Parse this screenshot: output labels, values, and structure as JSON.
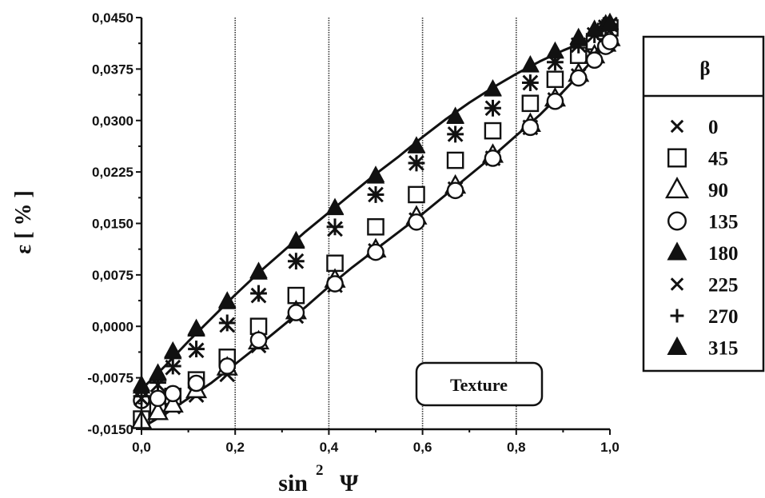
{
  "chart_data": {
    "type": "scatter",
    "title": "",
    "xlabel": "sin",
    "xlabel_sup": "2",
    "xlabel_symbol": "Ψ",
    "ylabel": "ε [ % ]",
    "xlim": [
      0.0,
      1.0
    ],
    "ylim": [
      -0.015,
      0.045
    ],
    "x_ticks": [
      0.0,
      0.2,
      0.4,
      0.6,
      0.8,
      1.0
    ],
    "x_tick_labels": [
      "0,0",
      "0,2",
      "0,4",
      "0,6",
      "0,8",
      "1,0"
    ],
    "y_ticks": [
      -0.015,
      -0.0075,
      0.0,
      0.0075,
      0.015,
      0.0225,
      0.03,
      0.0375,
      0.045
    ],
    "y_tick_labels": [
      "-0,0150",
      "-0,0075",
      "0,0000",
      "0,0075",
      "0,0150",
      "0,0225",
      "0,0300",
      "0,0375",
      "0,0450"
    ],
    "vertical_gridlines_at": [
      0.2,
      0.4,
      0.6,
      0.8
    ],
    "legend_title": "β",
    "legend_position": "right",
    "annotation": "Texture",
    "series": [
      {
        "name": "0",
        "marker": "x",
        "x": [
          0.0,
          0.035,
          0.067,
          0.117,
          0.183,
          0.25,
          0.33,
          0.413,
          0.5,
          0.587,
          0.67,
          0.75,
          0.83,
          0.883,
          0.933,
          0.967,
          0.991,
          1.0
        ],
        "y": [
          -0.0138,
          -0.0125,
          -0.0117,
          -0.01,
          -0.007,
          -0.0028,
          0.0015,
          0.006,
          0.011,
          0.0155,
          0.02,
          0.0245,
          0.029,
          0.033,
          0.0365,
          0.0392,
          0.041,
          0.0418
        ]
      },
      {
        "name": "45",
        "marker": "square",
        "x": [
          0.0,
          0.035,
          0.067,
          0.117,
          0.183,
          0.25,
          0.33,
          0.413,
          0.5,
          0.587,
          0.67,
          0.75,
          0.83,
          0.883,
          0.933,
          0.967,
          0.991,
          1.0
        ],
        "y": [
          -0.0135,
          -0.0118,
          -0.0102,
          -0.0078,
          -0.0045,
          0.0,
          0.0045,
          0.0092,
          0.0145,
          0.0192,
          0.0242,
          0.0285,
          0.0325,
          0.036,
          0.0395,
          0.0415,
          0.043,
          0.0435
        ]
      },
      {
        "name": "90",
        "marker": "triangle-open",
        "x": [
          0.0,
          0.035,
          0.067,
          0.117,
          0.183,
          0.25,
          0.33,
          0.413,
          0.5,
          0.587,
          0.67,
          0.75,
          0.83,
          0.883,
          0.933,
          0.967,
          0.991,
          1.0
        ],
        "y": [
          -0.0138,
          -0.0125,
          -0.0114,
          -0.0093,
          -0.006,
          -0.0022,
          0.0022,
          0.0068,
          0.0112,
          0.016,
          0.0205,
          0.025,
          0.0295,
          0.0332,
          0.0368,
          0.0395,
          0.0412,
          0.042
        ]
      },
      {
        "name": "135",
        "marker": "circle",
        "x": [
          0.0,
          0.035,
          0.067,
          0.117,
          0.183,
          0.25,
          0.33,
          0.413,
          0.5,
          0.587,
          0.67,
          0.75,
          0.83,
          0.883,
          0.933,
          0.967,
          0.991,
          1.0
        ],
        "y": [
          -0.0108,
          -0.0105,
          -0.0098,
          -0.0083,
          -0.0058,
          -0.002,
          0.002,
          0.0062,
          0.0108,
          0.0152,
          0.0198,
          0.0245,
          0.029,
          0.0328,
          0.0362,
          0.0388,
          0.0408,
          0.0415
        ]
      },
      {
        "name": "180",
        "marker": "triangle-filled",
        "x": [
          0.0,
          0.035,
          0.067,
          0.117,
          0.183,
          0.25,
          0.33,
          0.413,
          0.5,
          0.587,
          0.67,
          0.75,
          0.83,
          0.883,
          0.933,
          0.967,
          0.991,
          1.0
        ],
        "y": [
          -0.0088,
          -0.007,
          -0.0038,
          -0.0005,
          0.0035,
          0.0078,
          0.0123,
          0.0172,
          0.0218,
          0.0262,
          0.0305,
          0.0345,
          0.038,
          0.04,
          0.042,
          0.0432,
          0.044,
          0.0442
        ]
      },
      {
        "name": "225",
        "marker": "x",
        "x": [
          0.0,
          0.035,
          0.067,
          0.117,
          0.183,
          0.25,
          0.33,
          0.413,
          0.5,
          0.587,
          0.67,
          0.75,
          0.83,
          0.883,
          0.933,
          0.967,
          0.991,
          1.0
        ],
        "y": [
          -0.0105,
          -0.0085,
          -0.006,
          -0.0035,
          0.0002,
          0.0045,
          0.0095,
          0.0142,
          0.0192,
          0.0238,
          0.028,
          0.0318,
          0.0355,
          0.0385,
          0.041,
          0.0425,
          0.0436,
          0.044
        ]
      },
      {
        "name": "270",
        "marker": "plus",
        "x": [
          0.0,
          0.035,
          0.067,
          0.117,
          0.183,
          0.25,
          0.33,
          0.413,
          0.5,
          0.587,
          0.67,
          0.75,
          0.83,
          0.883,
          0.933,
          0.967,
          0.991,
          1.0
        ],
        "y": [
          -0.0102,
          -0.0082,
          -0.0058,
          -0.0033,
          0.0005,
          0.0048,
          0.0095,
          0.0145,
          0.0192,
          0.0238,
          0.028,
          0.0318,
          0.0355,
          0.0385,
          0.041,
          0.0425,
          0.0436,
          0.044
        ]
      },
      {
        "name": "315",
        "marker": "triangle-filled",
        "x": [
          0.0,
          0.035,
          0.067,
          0.117,
          0.183,
          0.25,
          0.33,
          0.413,
          0.5,
          0.587,
          0.67,
          0.75,
          0.83,
          0.883,
          0.933,
          0.967,
          0.991,
          1.0
        ],
        "y": [
          -0.0085,
          -0.0068,
          -0.0036,
          -0.0003,
          0.0037,
          0.008,
          0.0125,
          0.0173,
          0.022,
          0.0263,
          0.0306,
          0.0346,
          0.0381,
          0.0401,
          0.0421,
          0.0433,
          0.0441,
          0.0443
        ]
      }
    ],
    "fit_curves": [
      {
        "x": [
          0.0,
          0.05,
          0.1,
          0.15,
          0.2,
          0.25,
          0.3,
          0.35,
          0.4,
          0.45,
          0.5,
          0.55,
          0.6,
          0.65,
          0.7,
          0.75,
          0.8,
          0.85,
          0.9,
          0.95,
          1.0
        ],
        "y": [
          -0.0092,
          -0.0058,
          -0.0022,
          0.0012,
          0.0046,
          0.0078,
          0.0108,
          0.0138,
          0.0166,
          0.0194,
          0.0222,
          0.0248,
          0.0276,
          0.0302,
          0.0326,
          0.0348,
          0.0368,
          0.0386,
          0.0402,
          0.0416,
          0.0428
        ]
      },
      {
        "x": [
          0.0,
          0.05,
          0.1,
          0.15,
          0.2,
          0.25,
          0.3,
          0.35,
          0.4,
          0.45,
          0.5,
          0.55,
          0.6,
          0.65,
          0.7,
          0.75,
          0.8,
          0.85,
          0.9,
          0.95,
          1.0
        ],
        "y": [
          -0.0148,
          -0.0128,
          -0.0105,
          -0.0082,
          -0.0055,
          -0.0028,
          0.0,
          0.0028,
          0.0058,
          0.0086,
          0.0112,
          0.0138,
          0.0164,
          0.0192,
          0.022,
          0.0248,
          0.0278,
          0.0308,
          0.0342,
          0.0378,
          0.0418
        ]
      }
    ]
  }
}
